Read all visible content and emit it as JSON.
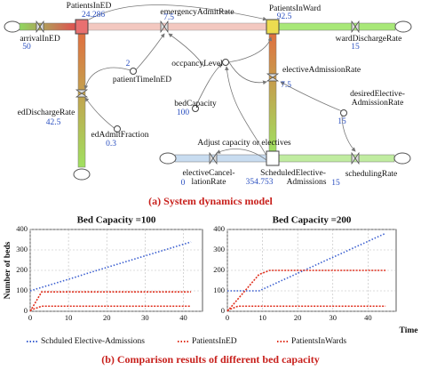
{
  "diagram": {
    "nodes": [
      {
        "label": "PatientsInED",
        "value": 24.286
      },
      {
        "label": "arrivalInED",
        "value": 50
      },
      {
        "label": "emergencyAdmitRate",
        "value": 7.5
      },
      {
        "label": "PatientsInWard",
        "value": 92.5
      },
      {
        "label": "wardDischargeRate",
        "value": 15
      },
      {
        "label": "edDischargeRate",
        "value": 42.5
      },
      {
        "label": "patientTimeInED",
        "value": 2
      },
      {
        "label": "occpancyLevel"
      },
      {
        "label": "edAdmitFraction",
        "value": 0.3
      },
      {
        "label": "bedCapacity",
        "value": 100
      },
      {
        "label": "electiveAdmissionRate",
        "value": 7.5
      },
      {
        "lines": [
          "desiredElective-",
          "AdmissionRate"
        ],
        "value": 15
      },
      {
        "label": "Adjust capacity or electives"
      },
      {
        "lines": [
          "electiveCancel-",
          "lationRate"
        ],
        "value": 0
      },
      {
        "lines": [
          "ScheduledElective-",
          "Admissions"
        ],
        "value": 354.753
      },
      {
        "label": "schedulingRate",
        "value": 15
      }
    ]
  },
  "captions": [
    "(a) System dynamics model",
    "(b) Comparison results of different bed capacity"
  ],
  "chart_data": [
    {
      "type": "line",
      "title": "Bed Capacity =100",
      "ylabel": "Number of beds",
      "xlim": [
        0,
        45
      ],
      "ylim": [
        0,
        400
      ],
      "xticks": [
        0,
        10,
        20,
        30,
        40
      ],
      "yticks": [
        0,
        100,
        200,
        300,
        400
      ],
      "grid": true,
      "x": [
        0,
        3,
        6,
        9,
        12,
        15,
        18,
        21,
        24,
        27,
        30,
        33,
        36,
        39,
        42
      ],
      "series": [
        {
          "name": "Schduled Elective-Admissions",
          "color": "#3b5fd0",
          "values": [
            100,
            117,
            134,
            151,
            168,
            186,
            203,
            220,
            237,
            254,
            271,
            288,
            305,
            322,
            339
          ]
        },
        {
          "name": "PatientsInED",
          "color": "#e0301e",
          "values": [
            5,
            25,
            25,
            25,
            25,
            25,
            25,
            25,
            25,
            25,
            25,
            25,
            25,
            25,
            25
          ]
        },
        {
          "name": "PatientsInWards",
          "color": "#e0301e",
          "values": [
            0,
            95,
            95,
            95,
            95,
            95,
            95,
            95,
            95,
            95,
            95,
            95,
            95,
            95,
            95
          ]
        }
      ]
    },
    {
      "type": "line",
      "title": "Bed Capacity =200",
      "xlabel": "Time",
      "xlim": [
        0,
        48
      ],
      "ylim": [
        0,
        400
      ],
      "xticks": [
        0,
        10,
        20,
        30,
        40
      ],
      "yticks": [
        0,
        100,
        200,
        300,
        400
      ],
      "grid": true,
      "x": [
        0,
        3,
        6,
        9,
        12,
        15,
        18,
        21,
        24,
        27,
        30,
        33,
        36,
        39,
        42,
        45
      ],
      "series": [
        {
          "color": "#3b5fd0",
          "values": [
            100,
            100,
            100,
            100,
            123,
            147,
            170,
            194,
            217,
            241,
            264,
            287,
            311,
            334,
            358,
            381
          ]
        },
        {
          "color": "#e0301e",
          "values": [
            5,
            25,
            25,
            25,
            25,
            25,
            25,
            25,
            25,
            25,
            25,
            25,
            25,
            25,
            25,
            25
          ]
        },
        {
          "color": "#e0301e",
          "values": [
            0,
            60,
            120,
            180,
            200,
            200,
            200,
            200,
            200,
            200,
            200,
            200,
            200,
            200,
            200,
            200
          ]
        }
      ]
    }
  ]
}
